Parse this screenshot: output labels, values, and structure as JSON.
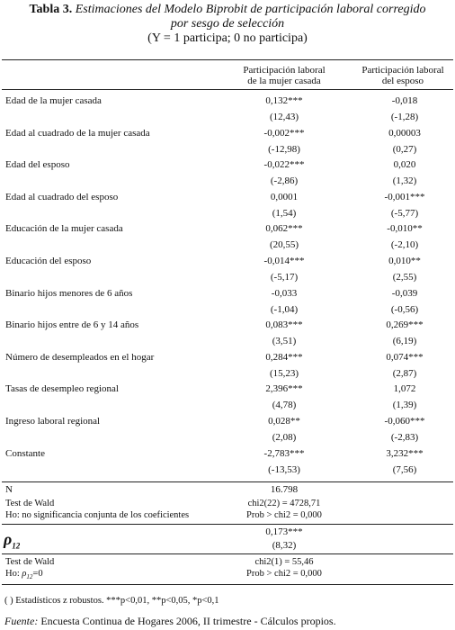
{
  "title": {
    "label": "Tabla 3.",
    "main": "Estimaciones del Modelo Biprobit de participación laboral corregido",
    "sub": "por sesgo de selección",
    "note": "(Y = 1 participa; 0 no participa)"
  },
  "columns": {
    "c1_l1": "Participación laboral",
    "c1_l2": "de la mujer casada",
    "c2_l1": "Participación laboral",
    "c2_l2": "del esposo"
  },
  "rows": [
    {
      "label": "Edad de la mujer casada",
      "c1": "0,132***",
      "c1t": "(12,43)",
      "c2": "-0,018",
      "c2t": "(-1,28)"
    },
    {
      "label": "Edad al cuadrado de la mujer casada",
      "c1": "-0,002***",
      "c1t": "(-12,98)",
      "c2": "0,00003",
      "c2t": "(0,27)"
    },
    {
      "label": "Edad del esposo",
      "c1": "-0,022***",
      "c1t": "(-2,86)",
      "c2": "0,020",
      "c2t": "(1,32)"
    },
    {
      "label": "Edad al cuadrado del esposo",
      "c1": "0,0001",
      "c1t": "(1,54)",
      "c2": "-0,001***",
      "c2t": "(-5,77)"
    },
    {
      "label": "Educación de la mujer casada",
      "c1": "0,062***",
      "c1t": "(20,55)",
      "c2": "-0,010**",
      "c2t": "(-2,10)"
    },
    {
      "label": "Educación del esposo",
      "c1": "-0,014***",
      "c1t": "(-5,17)",
      "c2": "0,010**",
      "c2t": "(2,55)"
    },
    {
      "label": "Binario hijos menores de 6 años",
      "c1": "-0,033",
      "c1t": "(-1,04)",
      "c2": "-0,039",
      "c2t": "(-0,56)"
    },
    {
      "label": "Binario hijos entre de 6 y 14 años",
      "c1": "0,083***",
      "c1t": "(3,51)",
      "c2": "0,269***",
      "c2t": "(6,19)"
    },
    {
      "label": "Número de desempleados en el hogar",
      "c1": "0,284***",
      "c1t": "(15,23)",
      "c2": "0,074***",
      "c2t": "(2,87)"
    },
    {
      "label": "Tasas de desempleo regional",
      "c1": "2,396***",
      "c1t": "(4,78)",
      "c2": "1,072",
      "c2t": "(1,39)"
    },
    {
      "label": "Ingreso laboral regional",
      "c1": "0,028**",
      "c1t": "(2,08)",
      "c2": "-0,060***",
      "c2t": "(-2,83)"
    },
    {
      "label": "Constante",
      "c1": "-2,783***",
      "c1t": "(-13,53)",
      "c2": "3,232***",
      "c2t": "(7,56)"
    }
  ],
  "stats": {
    "n_label": "N",
    "n_value": "16.798",
    "wald1_label": "Test de Wald",
    "wald1_value": "chi2(22) = 4728,71",
    "ho1_label": "Ho: no significancia conjunta de los coeficientes",
    "ho1_value": "Prob > chi2 = 0,000",
    "rho_symbol": "ρ",
    "rho_sub": "12",
    "rho_value": "0,173***",
    "rho_t": "(8,32)",
    "wald2_label": "Test de Wald",
    "wald2_value": "chi2(1) = 55,46",
    "ho2_label": "Ho: ",
    "ho2_sym": "ρ",
    "ho2_sub": "12",
    "ho2_eq": "=0",
    "ho2_value": "Prob > chi2 = 0,000"
  },
  "notes": {
    "line": "( ) Estadísticos z robustos.     ***p<0,01, **p<0,05, *p<0,1",
    "source_label": "Fuente:",
    "source_text": " Encuesta Continua de Hogares 2006, II trimestre - Cálculos propios."
  }
}
